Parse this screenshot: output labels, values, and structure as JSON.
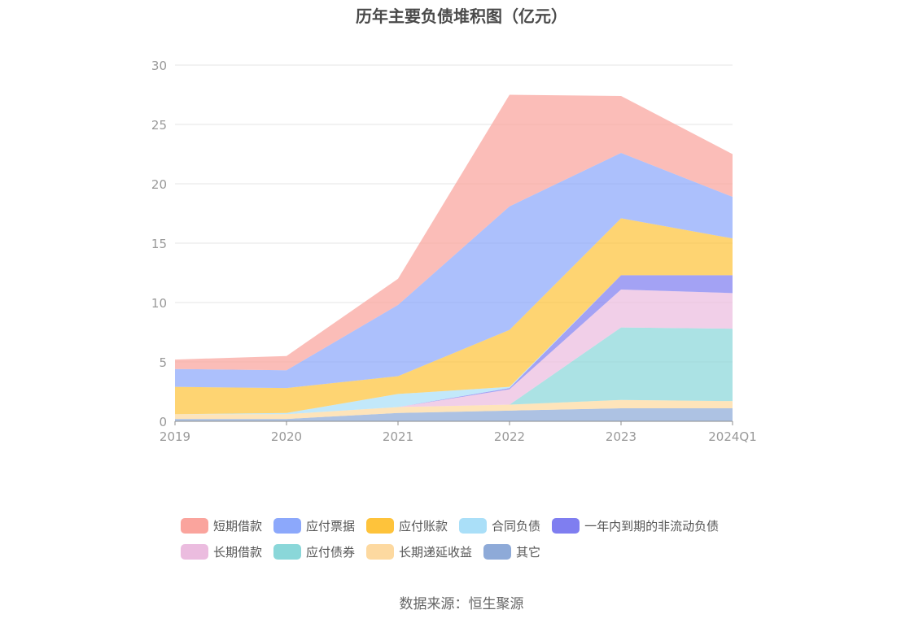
{
  "chart_data": {
    "type": "area",
    "stacked": true,
    "title": "历年主要负债堆积图（亿元）",
    "x": [
      "2019",
      "2020",
      "2021",
      "2022",
      "2023",
      "2024Q1"
    ],
    "ylim": [
      0,
      30
    ],
    "yticks": [
      "0",
      "5",
      "10",
      "15",
      "20",
      "25",
      "30"
    ],
    "grid": true,
    "legend_position": "bottom",
    "series": [
      {
        "name": "其它",
        "color": "#8eaad8",
        "values": [
          0.2,
          0.2,
          0.7,
          0.9,
          1.1,
          1.1
        ]
      },
      {
        "name": "长期递延收益",
        "color": "#fdd9a0",
        "values": [
          0.4,
          0.4,
          0.5,
          0.5,
          0.7,
          0.6
        ]
      },
      {
        "name": "应付债券",
        "color": "#8ad7d9",
        "values": [
          0,
          0,
          0,
          0,
          6.1,
          6.1
        ]
      },
      {
        "name": "长期借款",
        "color": "#ebbcdf",
        "values": [
          0,
          0,
          0,
          1.3,
          3.2,
          3.0
        ]
      },
      {
        "name": "一年内到期的非流动负债",
        "color": "#7f7ef0",
        "values": [
          0,
          0,
          0,
          0.1,
          1.2,
          1.5
        ]
      },
      {
        "name": "合同负债",
        "color": "#aadff8",
        "values": [
          0,
          0.1,
          1.1,
          0.1,
          0,
          0
        ]
      },
      {
        "name": "应付账款",
        "color": "#fec33b",
        "values": [
          2.3,
          2.1,
          1.5,
          4.8,
          4.8,
          3.1
        ]
      },
      {
        "name": "应付票据",
        "color": "#8ca8fb",
        "values": [
          1.5,
          1.5,
          6.0,
          10.4,
          5.5,
          3.5
        ]
      },
      {
        "name": "短期借款",
        "color": "#faa49d",
        "values": [
          0.8,
          1.2,
          2.2,
          9.4,
          4.8,
          3.6
        ]
      }
    ]
  },
  "legend": {
    "row1": [
      "短期借款",
      "应付票据",
      "应付账款",
      "合同负债",
      "一年内到期的非流动负债"
    ],
    "row2": [
      "长期借款",
      "应付债券",
      "长期递延收益",
      "其它"
    ]
  },
  "colors": {
    "短期借款": "#faa49d",
    "应付票据": "#8ca8fb",
    "应付账款": "#fec33b",
    "合同负债": "#aadff8",
    "一年内到期的非流动负债": "#7f7ef0",
    "长期借款": "#ebbcdf",
    "应付债券": "#8ad7d9",
    "长期递延收益": "#fdd9a0",
    "其它": "#8eaad8"
  },
  "source": "数据来源：恒生聚源"
}
